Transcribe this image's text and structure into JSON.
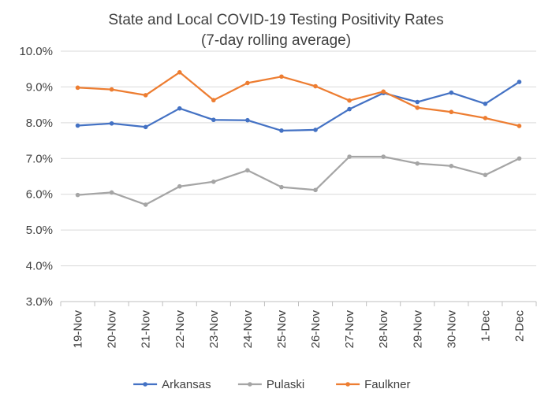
{
  "chart_data": {
    "type": "line",
    "title": "State and Local COVID-19 Testing Positivity Rates",
    "subtitle": "(7-day rolling average)",
    "xlabel": "",
    "ylabel": "",
    "ylim": [
      3.0,
      10.0
    ],
    "y_ticks": [
      "3.0%",
      "4.0%",
      "5.0%",
      "6.0%",
      "7.0%",
      "8.0%",
      "9.0%",
      "10.0%"
    ],
    "grid": true,
    "legend_position": "bottom",
    "categories": [
      "19-Nov",
      "20-Nov",
      "21-Nov",
      "22-Nov",
      "23-Nov",
      "24-Nov",
      "25-Nov",
      "26-Nov",
      "27-Nov",
      "28-Nov",
      "29-Nov",
      "30-Nov",
      "1-Dec",
      "2-Dec"
    ],
    "series": [
      {
        "name": "Arkansas",
        "color": "#4472c4",
        "values": [
          7.92,
          7.98,
          7.88,
          8.4,
          8.08,
          8.07,
          7.78,
          7.8,
          8.38,
          8.83,
          8.58,
          8.84,
          8.53,
          9.14
        ]
      },
      {
        "name": "Pulaski",
        "color": "#a5a5a5",
        "values": [
          5.98,
          6.05,
          5.71,
          6.22,
          6.35,
          6.67,
          6.2,
          6.12,
          7.05,
          7.05,
          6.86,
          6.79,
          6.54,
          7.0
        ]
      },
      {
        "name": "Faulkner",
        "color": "#ed7d31",
        "values": [
          8.98,
          8.93,
          8.77,
          9.41,
          8.63,
          9.11,
          9.29,
          9.02,
          8.62,
          8.87,
          8.42,
          8.3,
          8.13,
          7.91
        ]
      }
    ]
  }
}
